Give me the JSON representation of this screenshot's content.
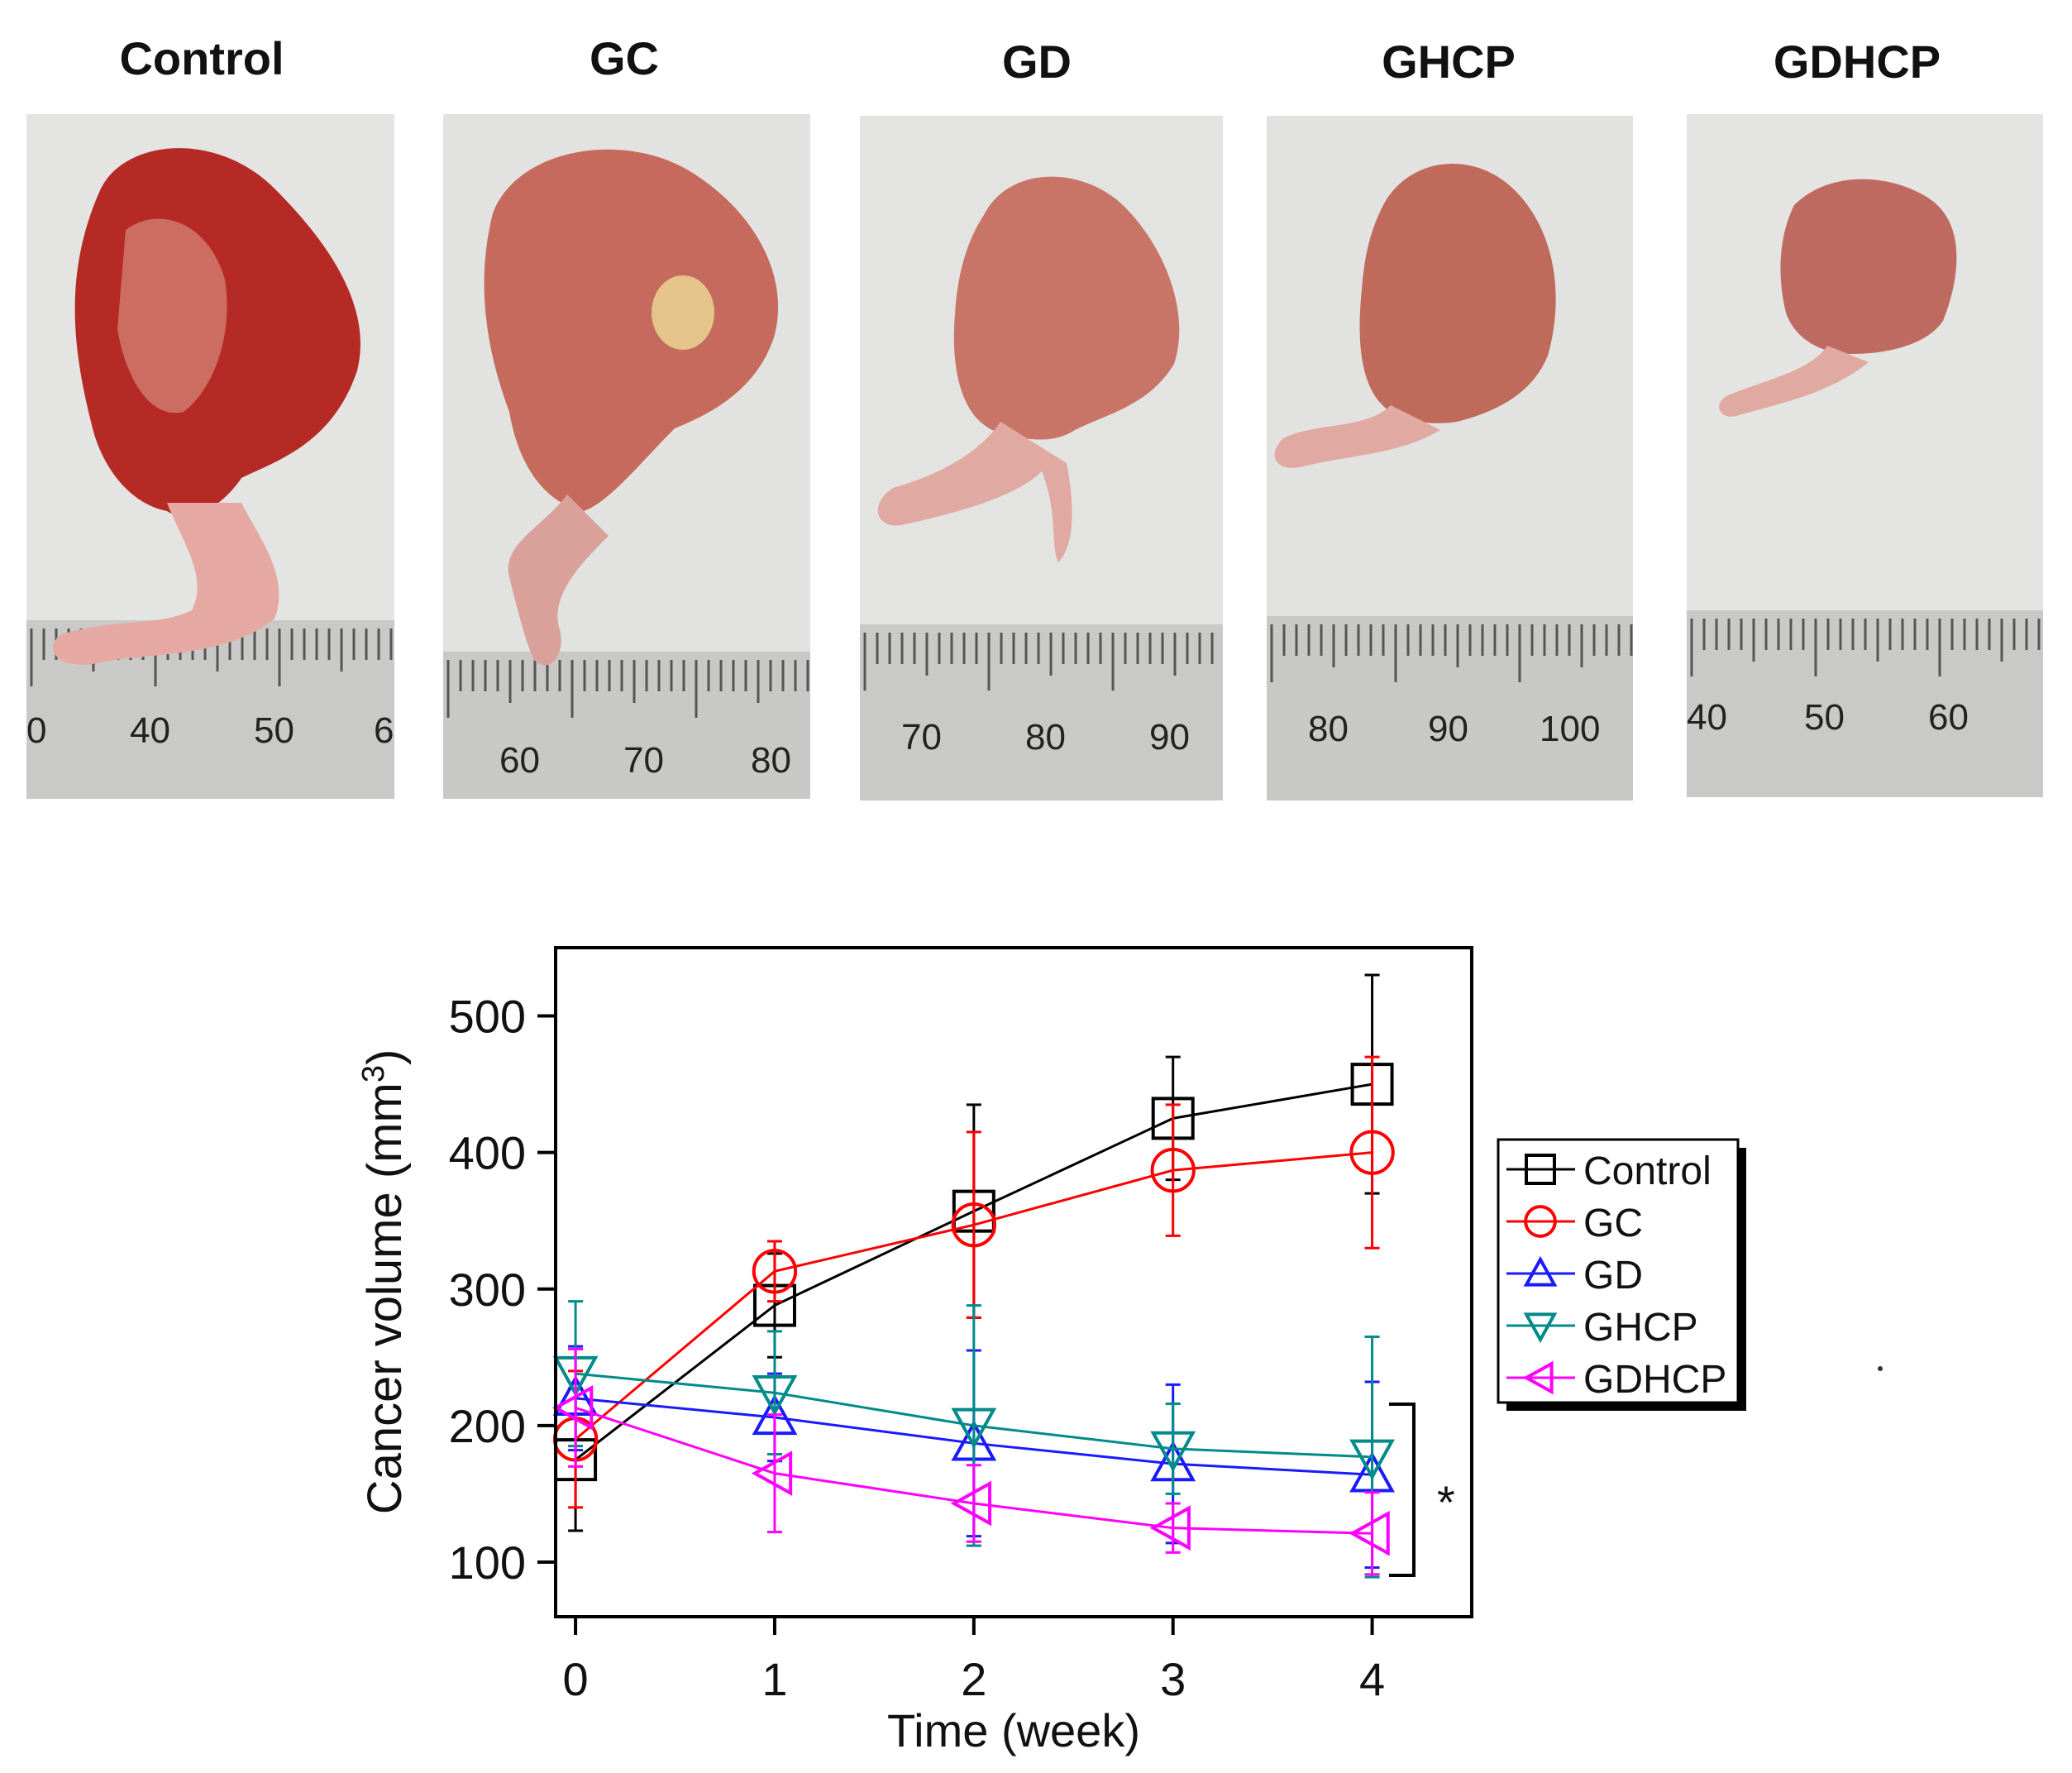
{
  "panels": [
    {
      "label": "Control",
      "ruler": [
        "0",
        "40",
        "50",
        "6"
      ]
    },
    {
      "label": "GC",
      "ruler": [
        "60",
        "70",
        "80"
      ]
    },
    {
      "label": "GD",
      "ruler": [
        "70",
        "80",
        "90"
      ]
    },
    {
      "label": "GHCP",
      "ruler": [
        "80",
        "90",
        "100"
      ]
    },
    {
      "label": "GDHCP",
      "ruler": [
        "40",
        "50",
        "60"
      ]
    }
  ],
  "colors": {
    "Control": "#000000",
    "GC": "#ff0000",
    "GD": "#1a1aff",
    "GHCP": "#008b8b",
    "GDHCP": "#ff00ff"
  },
  "chart_data": {
    "type": "line",
    "xlabel": "Time (week)",
    "ylabel": "Cancer volume (mm3)",
    "ylabel_main": "Cancer volume (mm",
    "ylabel_sup": "3",
    "ylabel_close": ")",
    "x": [
      0,
      1,
      2,
      3,
      4
    ],
    "xlim": [
      -0.1,
      4.5
    ],
    "ylim": [
      60,
      550
    ],
    "xticks": [
      "0",
      "1",
      "2",
      "3",
      "4"
    ],
    "yticks": [
      "100",
      "200",
      "300",
      "400",
      "500"
    ],
    "significance": "*",
    "series": [
      {
        "name": "Control",
        "marker": "square",
        "values": [
          175,
          288,
          357,
          425,
          450
        ],
        "errors": [
          52,
          38,
          78,
          45,
          80
        ]
      },
      {
        "name": "GC",
        "marker": "circle",
        "values": [
          190,
          313,
          347,
          387,
          400
        ],
        "errors": [
          50,
          22,
          68,
          48,
          70
        ]
      },
      {
        "name": "GD",
        "marker": "triangle-up",
        "values": [
          220,
          206,
          187,
          172,
          164
        ],
        "errors": [
          38,
          32,
          68,
          58,
          68
        ]
      },
      {
        "name": "GHCP",
        "marker": "triangle-down",
        "values": [
          238,
          224,
          200,
          183,
          177
        ],
        "errors": [
          53,
          45,
          88,
          33,
          88
        ]
      },
      {
        "name": "GDHCP",
        "marker": "triangle-left",
        "values": [
          213,
          165,
          143,
          125,
          121
        ],
        "errors": [
          43,
          43,
          28,
          18,
          30
        ]
      }
    ]
  }
}
